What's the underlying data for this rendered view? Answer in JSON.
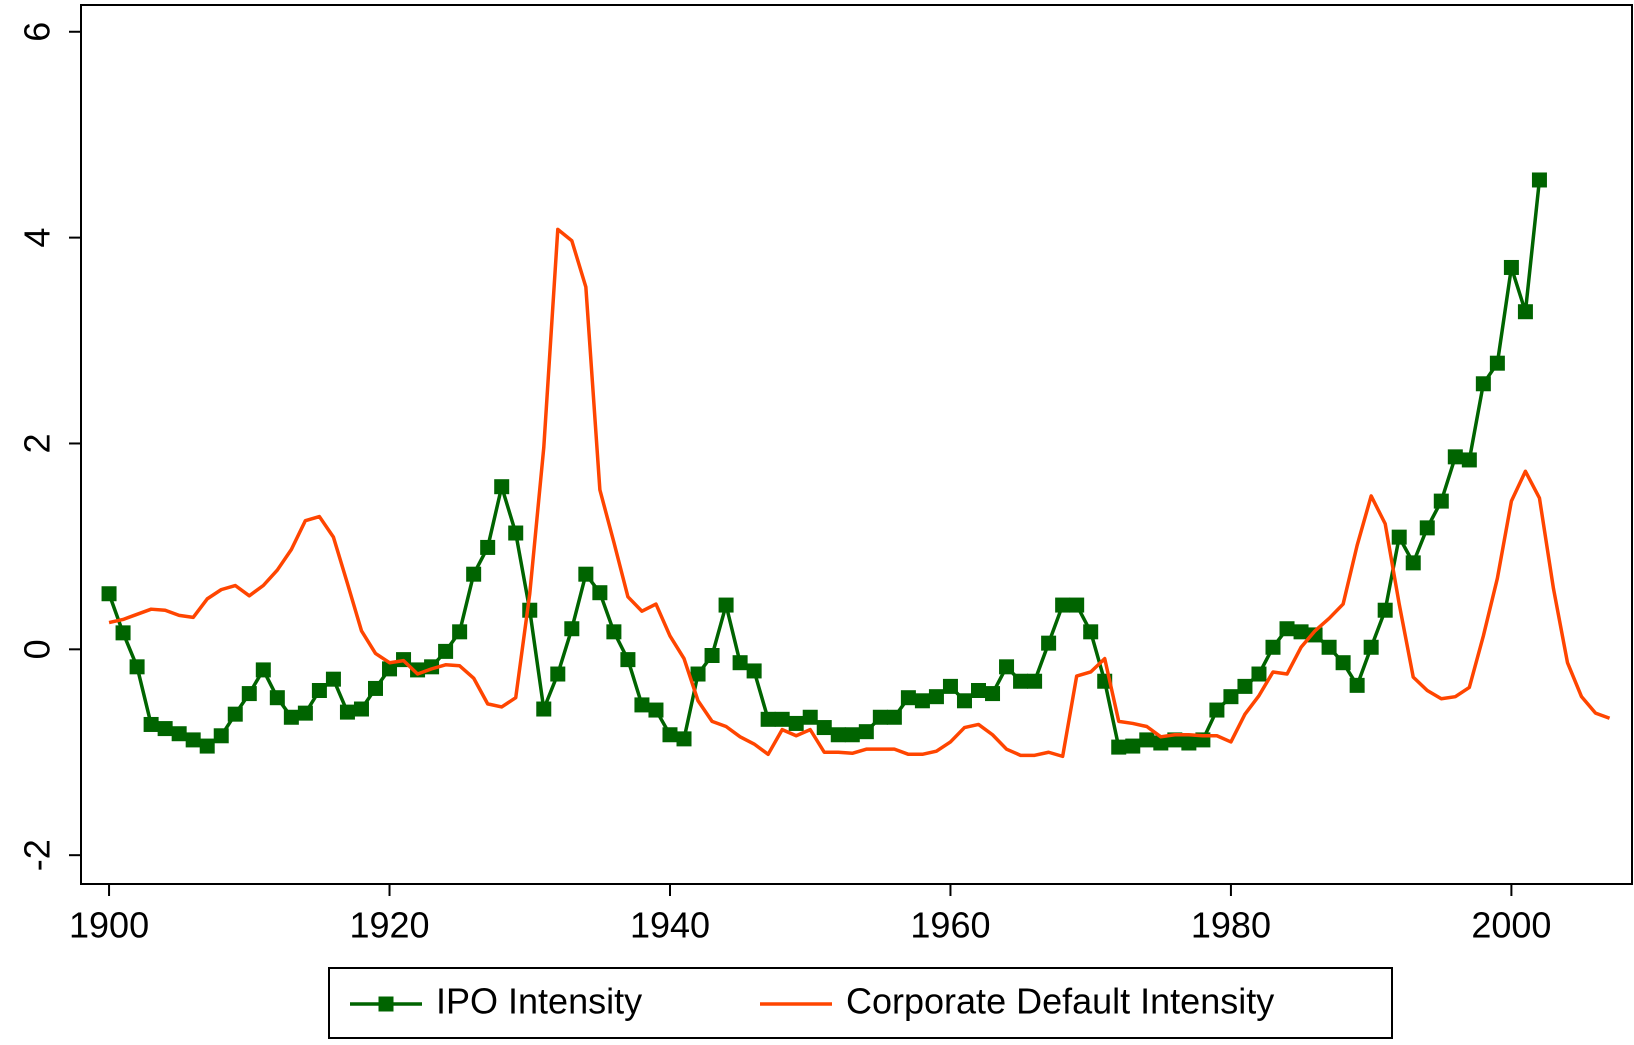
{
  "chart_data": {
    "type": "line",
    "xlim": [
      1898,
      2008.6
    ],
    "ylim": [
      -2.28,
      6.26
    ],
    "xticks": [
      1900,
      1920,
      1940,
      1960,
      1980,
      2000
    ],
    "yticks": [
      -2,
      0,
      2,
      4,
      6
    ],
    "legend": "bottom",
    "series": [
      {
        "name": "IPO Intensity",
        "color": "#006400",
        "marker": "square",
        "x": [
          1900,
          1901,
          1902,
          1903,
          1904,
          1905,
          1906,
          1907,
          1908,
          1909,
          1910,
          1911,
          1912,
          1913,
          1914,
          1915,
          1916,
          1917,
          1918,
          1919,
          1920,
          1921,
          1922,
          1923,
          1924,
          1925,
          1926,
          1927,
          1928,
          1929,
          1930,
          1931,
          1932,
          1933,
          1934,
          1935,
          1936,
          1937,
          1938,
          1939,
          1940,
          1941,
          1942,
          1943,
          1944,
          1945,
          1946,
          1947,
          1948,
          1949,
          1950,
          1951,
          1952,
          1953,
          1954,
          1955,
          1956,
          1957,
          1958,
          1959,
          1960,
          1961,
          1962,
          1963,
          1964,
          1965,
          1966,
          1967,
          1968,
          1969,
          1970,
          1971,
          1972,
          1973,
          1974,
          1975,
          1976,
          1977,
          1978,
          1979,
          1980,
          1981,
          1982,
          1983,
          1984,
          1985,
          1986,
          1987,
          1988,
          1989,
          1990,
          1991,
          1992,
          1993,
          1994,
          1995,
          1996,
          1997,
          1998,
          1999,
          2000,
          2001,
          2002
        ],
        "values": [
          0.54,
          0.16,
          -0.17,
          -0.73,
          -0.77,
          -0.82,
          -0.88,
          -0.94,
          -0.84,
          -0.63,
          -0.43,
          -0.2,
          -0.47,
          -0.66,
          -0.62,
          -0.4,
          -0.29,
          -0.61,
          -0.58,
          -0.38,
          -0.19,
          -0.1,
          -0.2,
          -0.17,
          -0.02,
          0.17,
          0.73,
          0.99,
          1.58,
          1.13,
          0.38,
          -0.58,
          -0.24,
          0.2,
          0.73,
          0.55,
          0.17,
          -0.1,
          -0.54,
          -0.59,
          -0.83,
          -0.87,
          -0.24,
          -0.06,
          0.43,
          -0.13,
          -0.21,
          -0.68,
          -0.68,
          -0.72,
          -0.66,
          -0.76,
          -0.83,
          -0.83,
          -0.8,
          -0.66,
          -0.66,
          -0.47,
          -0.5,
          -0.46,
          -0.36,
          -0.5,
          -0.4,
          -0.43,
          -0.17,
          -0.31,
          -0.31,
          0.06,
          0.43,
          0.43,
          0.17,
          -0.31,
          -0.95,
          -0.94,
          -0.88,
          -0.91,
          -0.88,
          -0.91,
          -0.88,
          -0.59,
          -0.46,
          -0.36,
          -0.24,
          0.02,
          0.2,
          0.17,
          0.14,
          0.02,
          -0.13,
          -0.35,
          0.02,
          0.38,
          1.09,
          0.84,
          1.18,
          1.44,
          1.87,
          1.84,
          2.58,
          2.78,
          3.71,
          3.28,
          4.56
        ]
      },
      {
        "name": "Corporate Default Intensity",
        "color": "#ff4500",
        "x": [
          1900,
          1901,
          1902,
          1903,
          1904,
          1905,
          1906,
          1907,
          1908,
          1909,
          1910,
          1911,
          1912,
          1913,
          1914,
          1915,
          1916,
          1917,
          1918,
          1919,
          1920,
          1921,
          1922,
          1923,
          1924,
          1925,
          1926,
          1927,
          1928,
          1929,
          1930,
          1931,
          1932,
          1933,
          1934,
          1935,
          1936,
          1937,
          1938,
          1939,
          1940,
          1941,
          1942,
          1943,
          1944,
          1945,
          1946,
          1947,
          1948,
          1949,
          1950,
          1951,
          1952,
          1953,
          1954,
          1955,
          1956,
          1957,
          1958,
          1959,
          1960,
          1961,
          1962,
          1963,
          1964,
          1965,
          1966,
          1967,
          1968,
          1969,
          1970,
          1971,
          1972,
          1973,
          1974,
          1975,
          1976,
          1977,
          1978,
          1979,
          1980,
          1981,
          1982,
          1983,
          1984,
          1985,
          1986,
          1987,
          1988,
          1989,
          1990,
          1991,
          1992,
          1993,
          1994,
          1995,
          1996,
          1997,
          1998,
          1999,
          2000,
          2001,
          2002,
          2003,
          2004,
          2005,
          2006,
          2007
        ],
        "values": [
          0.26,
          0.29,
          0.34,
          0.39,
          0.38,
          0.33,
          0.31,
          0.49,
          0.58,
          0.62,
          0.52,
          0.62,
          0.77,
          0.97,
          1.25,
          1.29,
          1.09,
          0.64,
          0.18,
          -0.04,
          -0.13,
          -0.11,
          -0.24,
          -0.19,
          -0.15,
          -0.16,
          -0.28,
          -0.53,
          -0.56,
          -0.47,
          0.54,
          1.96,
          4.08,
          3.97,
          3.52,
          1.55,
          1.04,
          0.51,
          0.37,
          0.44,
          0.13,
          -0.09,
          -0.5,
          -0.7,
          -0.75,
          -0.85,
          -0.92,
          -1.02,
          -0.78,
          -0.84,
          -0.78,
          -1.0,
          -1.0,
          -1.01,
          -0.97,
          -0.97,
          -0.97,
          -1.02,
          -1.02,
          -0.99,
          -0.9,
          -0.76,
          -0.73,
          -0.83,
          -0.97,
          -1.03,
          -1.03,
          -1.0,
          -1.04,
          -0.26,
          -0.22,
          -0.09,
          -0.7,
          -0.72,
          -0.75,
          -0.85,
          -0.83,
          -0.83,
          -0.84,
          -0.84,
          -0.9,
          -0.63,
          -0.45,
          -0.22,
          -0.24,
          0.02,
          0.18,
          0.3,
          0.44,
          1.01,
          1.49,
          1.22,
          0.44,
          -0.27,
          -0.4,
          -0.48,
          -0.46,
          -0.37,
          0.13,
          0.69,
          1.44,
          1.73,
          1.47,
          0.59,
          -0.13,
          -0.46,
          -0.62,
          -0.67
        ]
      }
    ]
  }
}
